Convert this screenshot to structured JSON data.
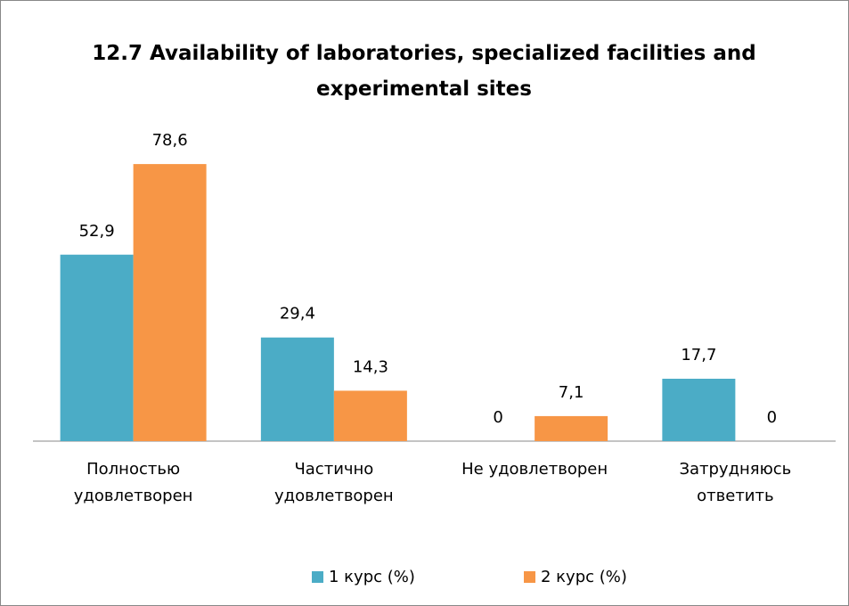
{
  "chart_data": {
    "type": "bar",
    "title": "12.7 Availability of laboratories, specialized facilities and\nexperimental sites",
    "categories": [
      "Полностью\nудовлетворен",
      "Частично\nудовлетворен",
      "Не удовлетворен",
      "Затрудняюсь\nответить"
    ],
    "series": [
      {
        "name": "1 курс (%)",
        "color": "#4bacc6",
        "values": [
          52.9,
          29.4,
          0,
          17.7
        ],
        "value_labels": [
          "52,9",
          "29,4",
          "0",
          "17,7"
        ]
      },
      {
        "name": "2 курс (%)",
        "color": "#f79646",
        "values": [
          78.6,
          14.3,
          7.1,
          0
        ],
        "value_labels": [
          "78,6",
          "14,3",
          "7,1",
          "0"
        ]
      }
    ],
    "ylim": [
      0,
      90
    ]
  }
}
